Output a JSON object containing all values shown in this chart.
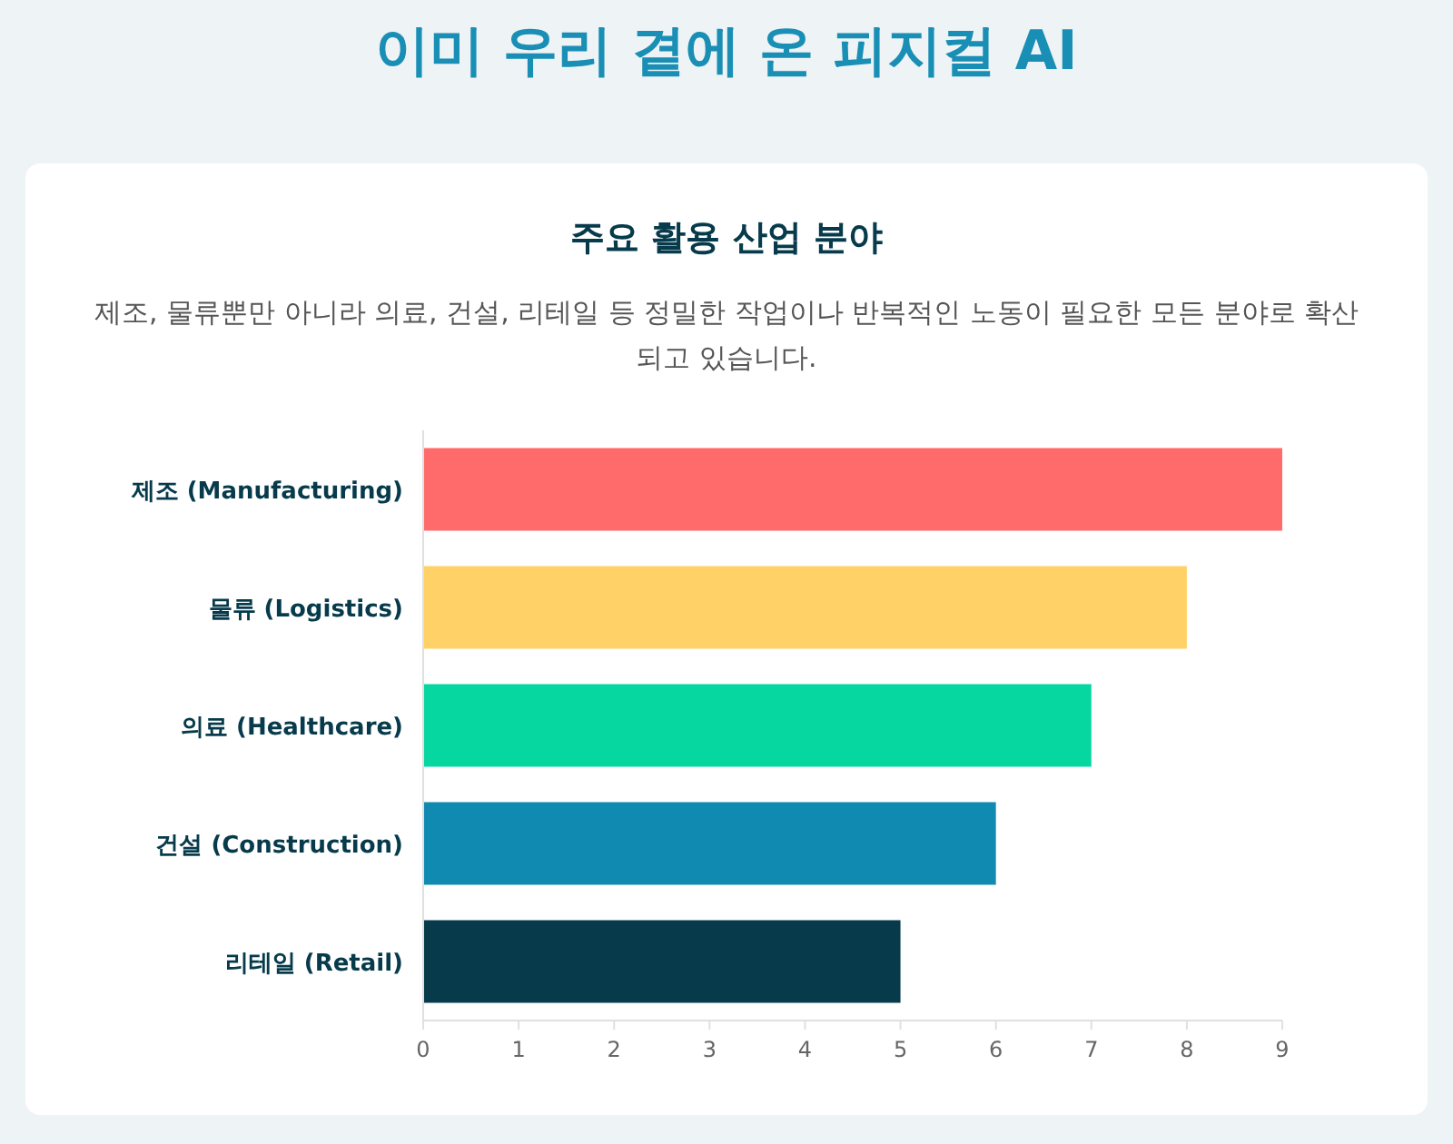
{
  "chart_data": {
    "type": "bar",
    "orientation": "horizontal",
    "title": "이미 우리 곁에 온 피지컬 AI",
    "subtitle": "주요 활용 산업 분야",
    "annotations": [
      "제조, 물류뿐만 아니라 의료, 건설, 리테일 등 정밀한 작업이나 반복적인 노동이 필요한 모든 분야로 확산되고 있습니다."
    ],
    "categories": [
      "제조 (Manufacturing)",
      "물류 (Logistics)",
      "의료 (Healthcare)",
      "건설 (Construction)",
      "리테일 (Retail)"
    ],
    "values": [
      9,
      8,
      7,
      6,
      5
    ],
    "colors": [
      "#ff6b6b",
      "#ffd166",
      "#06d6a0",
      "#118ab2",
      "#073b4c"
    ],
    "xlim": [
      0,
      9
    ],
    "xticks": [
      0,
      1,
      2,
      3,
      4,
      5,
      6,
      7,
      8,
      9
    ]
  }
}
